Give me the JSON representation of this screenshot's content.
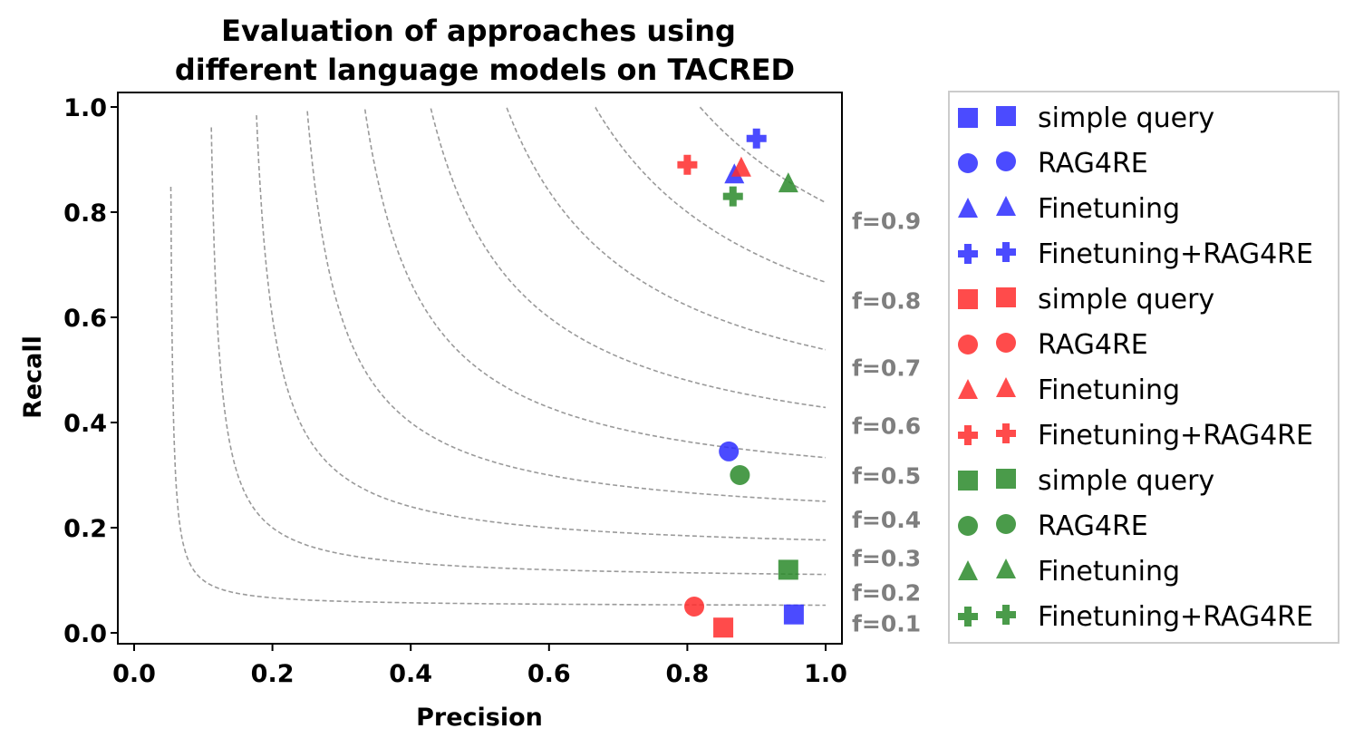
{
  "chart_data": {
    "type": "scatter",
    "title_lines": [
      "Evaluation of approaches using",
      "different language models on TACRED"
    ],
    "xlabel": "Precision",
    "ylabel": "Recall",
    "xlim": [
      -0.02,
      1.02
    ],
    "ylim": [
      -0.02,
      1.02
    ],
    "xticks": [
      "0.0",
      "0.2",
      "0.4",
      "0.6",
      "0.8",
      "1.0"
    ],
    "yticks": [
      "0.0",
      "0.2",
      "0.4",
      "0.6",
      "0.8",
      "1.0"
    ],
    "iso_f1": [
      {
        "f": 0.1,
        "label": "f=0.1"
      },
      {
        "f": 0.2,
        "label": "f=0.2"
      },
      {
        "f": 0.3,
        "label": "f=0.3"
      },
      {
        "f": 0.4,
        "label": "f=0.4"
      },
      {
        "f": 0.5,
        "label": "f=0.5"
      },
      {
        "f": 0.6,
        "label": "f=0.6"
      },
      {
        "f": 0.7,
        "label": "f=0.7"
      },
      {
        "f": 0.8,
        "label": "f=0.8"
      },
      {
        "f": 0.9,
        "label": "f=0.9"
      }
    ],
    "colors": {
      "blue": "#2b2bff",
      "red": "#ff2b2b",
      "green": "#2a8a2a",
      "isoline": "#9a9a9a"
    },
    "series": [
      {
        "name": "simple query",
        "color": "blue",
        "marker": "square",
        "x": 0.954,
        "y": 0.035
      },
      {
        "name": "RAG4RE",
        "color": "blue",
        "marker": "circle",
        "x": 0.86,
        "y": 0.345
      },
      {
        "name": "Finetuning",
        "color": "blue",
        "marker": "triangle",
        "x": 0.868,
        "y": 0.872
      },
      {
        "name": "Finetuning+RAG4RE",
        "color": "blue",
        "marker": "plus",
        "x": 0.9,
        "y": 0.94
      },
      {
        "name": "simple query",
        "color": "red",
        "marker": "square",
        "x": 0.852,
        "y": 0.01
      },
      {
        "name": "RAG4RE",
        "color": "red",
        "marker": "circle",
        "x": 0.81,
        "y": 0.05
      },
      {
        "name": "Finetuning",
        "color": "red",
        "marker": "triangle",
        "x": 0.878,
        "y": 0.885
      },
      {
        "name": "Finetuning+RAG4RE",
        "color": "red",
        "marker": "plus",
        "x": 0.8,
        "y": 0.89
      },
      {
        "name": "simple query",
        "color": "green",
        "marker": "square",
        "x": 0.946,
        "y": 0.12
      },
      {
        "name": "RAG4RE",
        "color": "green",
        "marker": "circle",
        "x": 0.876,
        "y": 0.3
      },
      {
        "name": "Finetuning",
        "color": "green",
        "marker": "triangle",
        "x": 0.946,
        "y": 0.855
      },
      {
        "name": "Finetuning+RAG4RE",
        "color": "green",
        "marker": "plus",
        "x": 0.866,
        "y": 0.83
      }
    ],
    "legend": {
      "placement": "outside-right",
      "entries": [
        {
          "label": "simple query",
          "color": "blue",
          "marker": "square"
        },
        {
          "label": "RAG4RE",
          "color": "blue",
          "marker": "circle"
        },
        {
          "label": "Finetuning",
          "color": "blue",
          "marker": "triangle"
        },
        {
          "label": "Finetuning+RAG4RE",
          "color": "blue",
          "marker": "plus"
        },
        {
          "label": "simple query",
          "color": "red",
          "marker": "square"
        },
        {
          "label": "RAG4RE",
          "color": "red",
          "marker": "circle"
        },
        {
          "label": "Finetuning",
          "color": "red",
          "marker": "triangle"
        },
        {
          "label": "Finetuning+RAG4RE",
          "color": "red",
          "marker": "plus"
        },
        {
          "label": "simple query",
          "color": "green",
          "marker": "square"
        },
        {
          "label": "RAG4RE",
          "color": "green",
          "marker": "circle"
        },
        {
          "label": "Finetuning",
          "color": "green",
          "marker": "triangle"
        },
        {
          "label": "Finetuning+RAG4RE",
          "color": "green",
          "marker": "plus"
        }
      ]
    }
  }
}
